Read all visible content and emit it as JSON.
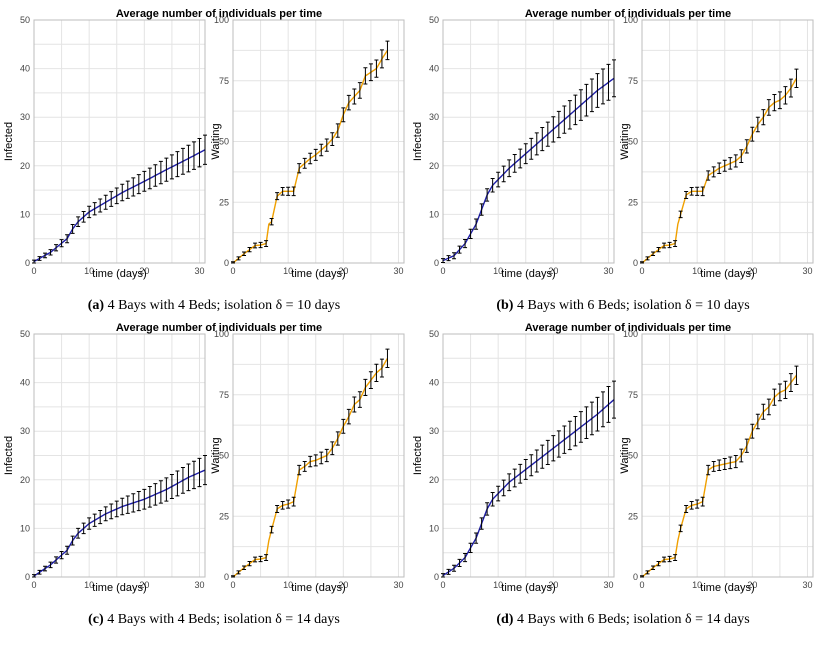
{
  "figure_title": "Average number of individuals per time",
  "colors": {
    "infected_line": "#1f1fa8",
    "waiting_line": "#f0a000",
    "error_bar": "#000000",
    "grid": "#e4e4e4",
    "panel_border": "#bdbdbd"
  },
  "chart_data": [
    {
      "id": "a",
      "title": "Average number of individuals per time",
      "caption_label": "(a)",
      "caption_text": "4 Bays with 4 Beds; isolation δ = 10 days",
      "panels": [
        {
          "type": "line",
          "ylabel": "Infected",
          "xlabel": "time (days)",
          "xlim": [
            0,
            31
          ],
          "ylim": [
            0,
            50
          ],
          "yticks": [
            0,
            10,
            20,
            30,
            40,
            50
          ],
          "xticks": [
            0,
            10,
            20,
            30
          ],
          "color": "infected",
          "curve_points": [
            [
              0,
              0.3
            ],
            [
              3,
              2.2
            ],
            [
              6,
              5
            ],
            [
              7,
              7
            ],
            [
              8,
              8.5
            ],
            [
              10,
              10.5
            ],
            [
              13,
              12.5
            ],
            [
              16,
              14.5
            ],
            [
              20,
              16.8
            ],
            [
              24,
              19.2
            ],
            [
              28,
              21.5
            ],
            [
              31,
              23.3
            ]
          ],
          "error_halfwidth": [
            0.3,
            3
          ]
        },
        {
          "type": "line",
          "ylabel": "Waiting",
          "xlabel": "time (days)",
          "xlim": [
            0,
            31
          ],
          "ylim": [
            0,
            100
          ],
          "yticks": [
            0,
            25,
            50,
            75,
            100
          ],
          "xticks": [
            0,
            10,
            20,
            30
          ],
          "color": "waiting",
          "curve_points": [
            [
              0,
              0
            ],
            [
              2,
              3.8
            ],
            [
              3,
              5.5
            ],
            [
              4,
              7.2
            ],
            [
              5,
              7.4
            ],
            [
              6,
              8
            ],
            [
              6.5,
              16
            ],
            [
              7,
              17
            ],
            [
              8,
              27.5
            ],
            [
              9,
              29.5
            ],
            [
              10,
              29.5
            ],
            [
              11,
              29.5
            ],
            [
              12,
              39
            ],
            [
              13,
              41
            ],
            [
              14,
              43
            ],
            [
              15,
              44.5
            ],
            [
              16,
              46.5
            ],
            [
              17,
              48.5
            ],
            [
              18,
              51
            ],
            [
              19,
              54.5
            ],
            [
              20,
              61
            ],
            [
              21,
              66
            ],
            [
              22,
              68.5
            ],
            [
              23,
              71
            ],
            [
              24,
              77
            ],
            [
              25,
              78.5
            ],
            [
              26,
              80
            ],
            [
              27,
              84
            ],
            [
              28,
              87.5
            ]
          ],
          "error_halfwidth": [
            0.5,
            3.8
          ]
        }
      ]
    },
    {
      "id": "b",
      "title": "Average number of individuals per time",
      "caption_label": "(b)",
      "caption_text": "4 Bays with 6 Beds; isolation δ = 10 days",
      "panels": [
        {
          "type": "line",
          "ylabel": "Infected",
          "xlabel": "time (days)",
          "xlim": [
            0,
            31
          ],
          "ylim": [
            0,
            50
          ],
          "yticks": [
            0,
            10,
            20,
            30,
            40,
            50
          ],
          "xticks": [
            0,
            10,
            20,
            30
          ],
          "color": "infected",
          "curve_points": [
            [
              0,
              0.5
            ],
            [
              2,
              1.5
            ],
            [
              4,
              4
            ],
            [
              6,
              8
            ],
            [
              7,
              11
            ],
            [
              8,
              14
            ],
            [
              9,
              16
            ],
            [
              12,
              19.5
            ],
            [
              16,
              23.5
            ],
            [
              20,
              27.5
            ],
            [
              24,
              31.5
            ],
            [
              28,
              35.5
            ],
            [
              31,
              38
            ]
          ],
          "error_halfwidth": [
            0.4,
            3.8
          ]
        },
        {
          "type": "line",
          "ylabel": "Waiting",
          "xlabel": "time (days)",
          "xlim": [
            0,
            31
          ],
          "ylim": [
            0,
            100
          ],
          "yticks": [
            0,
            25,
            50,
            75,
            100
          ],
          "xticks": [
            0,
            10,
            20,
            30
          ],
          "color": "waiting",
          "curve_points": [
            [
              0,
              0
            ],
            [
              2,
              3.8
            ],
            [
              3,
              5.5
            ],
            [
              4,
              7.2
            ],
            [
              5,
              7.4
            ],
            [
              6,
              8
            ],
            [
              6.5,
              16
            ],
            [
              7,
              20
            ],
            [
              8,
              28
            ],
            [
              9,
              29.5
            ],
            [
              10,
              29.5
            ],
            [
              11,
              29.5
            ],
            [
              12,
              36
            ],
            [
              13,
              37.5
            ],
            [
              14,
              39
            ],
            [
              15,
              40
            ],
            [
              16,
              41
            ],
            [
              17,
              42
            ],
            [
              18,
              44
            ],
            [
              19,
              48
            ],
            [
              20,
              53
            ],
            [
              21,
              57
            ],
            [
              22,
              60
            ],
            [
              23,
              64
            ],
            [
              24,
              66
            ],
            [
              25,
              67
            ],
            [
              26,
              69
            ],
            [
              27,
              72
            ],
            [
              28,
              76
            ]
          ],
          "error_halfwidth": [
            0.5,
            3.8
          ]
        }
      ]
    },
    {
      "id": "c",
      "title": "Average number of individuals per time",
      "caption_label": "(c)",
      "caption_text": "4 Bays with 4 Beds; isolation δ = 14 days",
      "panels": [
        {
          "type": "line",
          "ylabel": "Infected",
          "xlabel": "time (days)",
          "xlim": [
            0,
            31
          ],
          "ylim": [
            0,
            50
          ],
          "yticks": [
            0,
            10,
            20,
            30,
            40,
            50
          ],
          "xticks": [
            0,
            10,
            20,
            30
          ],
          "color": "infected",
          "curve_points": [
            [
              0,
              0.2
            ],
            [
              3,
              2.5
            ],
            [
              6,
              5.5
            ],
            [
              7,
              7.5
            ],
            [
              8,
              9
            ],
            [
              10,
              11
            ],
            [
              13,
              13
            ],
            [
              16,
              14.5
            ],
            [
              20,
              16
            ],
            [
              24,
              18
            ],
            [
              28,
              20.5
            ],
            [
              31,
              22
            ]
          ],
          "error_halfwidth": [
            0.3,
            3
          ]
        },
        {
          "type": "line",
          "ylabel": "Waiting",
          "xlabel": "time (days)",
          "xlim": [
            0,
            31
          ],
          "ylim": [
            0,
            100
          ],
          "yticks": [
            0,
            25,
            50,
            75,
            100
          ],
          "xticks": [
            0,
            10,
            20,
            30
          ],
          "color": "waiting",
          "curve_points": [
            [
              0,
              0
            ],
            [
              2,
              3.8
            ],
            [
              3,
              5.5
            ],
            [
              4,
              7.2
            ],
            [
              5,
              7.4
            ],
            [
              6,
              8
            ],
            [
              6.5,
              15
            ],
            [
              7,
              19.5
            ],
            [
              8,
              28
            ],
            [
              9,
              29.5
            ],
            [
              10,
              30
            ],
            [
              11,
              31
            ],
            [
              12,
              44
            ],
            [
              13,
              45.5
            ],
            [
              14,
              47.5
            ],
            [
              15,
              48
            ],
            [
              16,
              49
            ],
            [
              17,
              50
            ],
            [
              18,
              53
            ],
            [
              19,
              57
            ],
            [
              20,
              62
            ],
            [
              21,
              66
            ],
            [
              22,
              71
            ],
            [
              23,
              73
            ],
            [
              24,
              78
            ],
            [
              25,
              81
            ],
            [
              26,
              84
            ],
            [
              27,
              86
            ],
            [
              28,
              90
            ]
          ],
          "error_halfwidth": [
            0.5,
            3.8
          ]
        }
      ]
    },
    {
      "id": "d",
      "title": "Average number of individuals per time",
      "caption_label": "(d)",
      "caption_text": "4 Bays with 6 Beds; isolation δ = 14 days",
      "panels": [
        {
          "type": "line",
          "ylabel": "Infected",
          "xlabel": "time (days)",
          "xlim": [
            0,
            31
          ],
          "ylim": [
            0,
            50
          ],
          "yticks": [
            0,
            10,
            20,
            30,
            40,
            50
          ],
          "xticks": [
            0,
            10,
            20,
            30
          ],
          "color": "infected",
          "curve_points": [
            [
              0,
              0.3
            ],
            [
              2,
              1.8
            ],
            [
              4,
              4
            ],
            [
              6,
              8
            ],
            [
              7,
              11
            ],
            [
              8,
              14
            ],
            [
              9,
              16
            ],
            [
              12,
              19.5
            ],
            [
              16,
              23
            ],
            [
              20,
              26.5
            ],
            [
              24,
              30
            ],
            [
              28,
              33.5
            ],
            [
              31,
              36.5
            ]
          ],
          "error_halfwidth": [
            0.4,
            3.8
          ]
        },
        {
          "type": "line",
          "ylabel": "Waiting",
          "xlabel": "time (days)",
          "xlim": [
            0,
            31
          ],
          "ylim": [
            0,
            100
          ],
          "yticks": [
            0,
            25,
            50,
            75,
            100
          ],
          "xticks": [
            0,
            10,
            20,
            30
          ],
          "color": "waiting",
          "curve_points": [
            [
              0,
              0
            ],
            [
              2,
              3.8
            ],
            [
              3,
              5.5
            ],
            [
              4,
              7.2
            ],
            [
              5,
              7.4
            ],
            [
              6,
              8
            ],
            [
              6.5,
              15
            ],
            [
              7,
              20
            ],
            [
              8,
              28
            ],
            [
              9,
              29.5
            ],
            [
              10,
              30
            ],
            [
              11,
              31
            ],
            [
              12,
              44
            ],
            [
              13,
              45.5
            ],
            [
              14,
              46
            ],
            [
              15,
              46.5
            ],
            [
              16,
              47
            ],
            [
              17,
              47.5
            ],
            [
              18,
              50
            ],
            [
              19,
              54
            ],
            [
              20,
              60
            ],
            [
              21,
              64
            ],
            [
              22,
              68
            ],
            [
              23,
              70
            ],
            [
              24,
              74
            ],
            [
              25,
              76
            ],
            [
              26,
              77
            ],
            [
              27,
              80
            ],
            [
              28,
              83
            ]
          ],
          "error_halfwidth": [
            0.5,
            3.8
          ]
        }
      ]
    }
  ]
}
